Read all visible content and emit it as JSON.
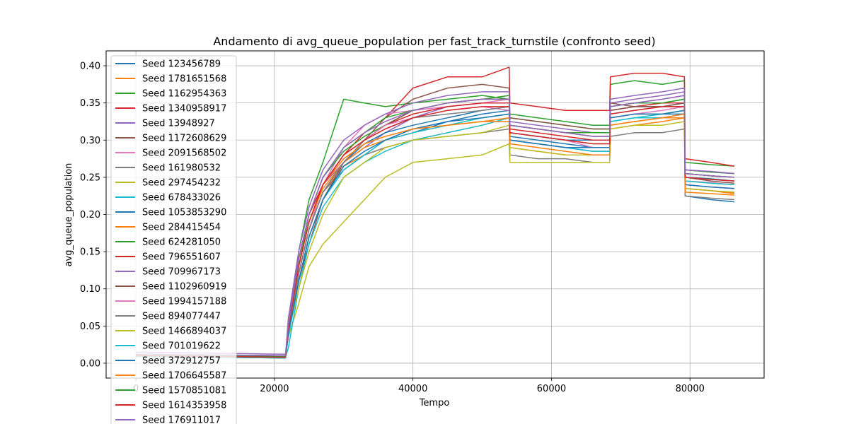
{
  "chart_data": {
    "type": "line",
    "title": "Andamento di avg_queue_population per fast_track_turnstile (confronto seed)",
    "xlabel": "Tempo",
    "ylabel": "avg_queue_population",
    "xlim": [
      -4300,
      90700
    ],
    "ylim": [
      -0.02,
      0.42
    ],
    "xticks": [
      0,
      20000,
      40000,
      60000,
      80000
    ],
    "xtick_labels": [
      "0",
      "20000",
      "40000",
      "60000",
      "80000"
    ],
    "yticks": [
      0.0,
      0.05,
      0.1,
      0.15,
      0.2,
      0.25,
      0.3,
      0.35,
      0.4
    ],
    "ytick_labels": [
      "0.00",
      "0.05",
      "0.10",
      "0.15",
      "0.20",
      "0.25",
      "0.30",
      "0.35",
      "0.40"
    ],
    "grid": true,
    "legend_position": "top-left",
    "x": [
      0,
      21600,
      22000,
      23500,
      25000,
      27000,
      30000,
      33000,
      36000,
      40000,
      45000,
      50000,
      53900,
      54000,
      58000,
      62000,
      66000,
      68400,
      68500,
      72000,
      76000,
      79200,
      79300,
      83000,
      86400
    ],
    "series": [
      {
        "name": "Seed 123456789",
        "color": "#1f77b4",
        "values": [
          0.01,
          0.008,
          0.04,
          0.11,
          0.17,
          0.22,
          0.26,
          0.28,
          0.3,
          0.31,
          0.325,
          0.335,
          0.34,
          0.305,
          0.3,
          0.295,
          0.29,
          0.29,
          0.33,
          0.335,
          0.335,
          0.335,
          0.225,
          0.22,
          0.217
        ]
      },
      {
        "name": "Seed 1781651568",
        "color": "#ff7f0e",
        "values": [
          0.009,
          0.007,
          0.04,
          0.12,
          0.18,
          0.23,
          0.265,
          0.28,
          0.29,
          0.3,
          0.31,
          0.32,
          0.33,
          0.3,
          0.295,
          0.29,
          0.285,
          0.285,
          0.32,
          0.325,
          0.33,
          0.33,
          0.235,
          0.232,
          0.229
        ]
      },
      {
        "name": "Seed 1162954363",
        "color": "#2ca02c",
        "values": [
          0.012,
          0.01,
          0.05,
          0.15,
          0.22,
          0.27,
          0.355,
          0.35,
          0.345,
          0.35,
          0.355,
          0.36,
          0.355,
          0.33,
          0.325,
          0.32,
          0.315,
          0.315,
          0.375,
          0.38,
          0.375,
          0.38,
          0.27,
          0.267,
          0.265
        ]
      },
      {
        "name": "Seed 1340958917",
        "color": "#d62728",
        "values": [
          0.01,
          0.008,
          0.045,
          0.13,
          0.19,
          0.24,
          0.28,
          0.31,
          0.33,
          0.37,
          0.385,
          0.385,
          0.398,
          0.35,
          0.345,
          0.34,
          0.34,
          0.34,
          0.385,
          0.39,
          0.39,
          0.385,
          0.275,
          0.27,
          0.265
        ]
      },
      {
        "name": "Seed 13948927",
        "color": "#9467bd",
        "values": [
          0.015,
          0.012,
          0.05,
          0.14,
          0.2,
          0.24,
          0.27,
          0.29,
          0.31,
          0.33,
          0.345,
          0.35,
          0.35,
          0.32,
          0.315,
          0.31,
          0.31,
          0.31,
          0.35,
          0.355,
          0.36,
          0.365,
          0.26,
          0.257,
          0.255
        ]
      },
      {
        "name": "Seed 1172608629",
        "color": "#8c564b",
        "values": [
          0.01,
          0.008,
          0.04,
          0.11,
          0.16,
          0.22,
          0.27,
          0.3,
          0.33,
          0.355,
          0.37,
          0.375,
          0.37,
          0.33,
          0.325,
          0.32,
          0.315,
          0.315,
          0.35,
          0.345,
          0.345,
          0.345,
          0.255,
          0.252,
          0.25
        ]
      },
      {
        "name": "Seed 2091568502",
        "color": "#e377c2",
        "values": [
          0.01,
          0.008,
          0.04,
          0.12,
          0.18,
          0.24,
          0.29,
          0.32,
          0.335,
          0.34,
          0.345,
          0.35,
          0.355,
          0.31,
          0.305,
          0.3,
          0.29,
          0.29,
          0.345,
          0.35,
          0.355,
          0.36,
          0.245,
          0.243,
          0.24
        ]
      },
      {
        "name": "Seed 161980532",
        "color": "#7f7f7f",
        "values": [
          0.01,
          0.008,
          0.04,
          0.12,
          0.18,
          0.23,
          0.26,
          0.28,
          0.29,
          0.3,
          0.305,
          0.31,
          0.315,
          0.28,
          0.275,
          0.275,
          0.27,
          0.27,
          0.305,
          0.31,
          0.31,
          0.315,
          0.225,
          0.222,
          0.22
        ]
      },
      {
        "name": "Seed 297454232",
        "color": "#bcbd22",
        "values": [
          0.01,
          0.009,
          0.035,
          0.08,
          0.13,
          0.16,
          0.19,
          0.22,
          0.25,
          0.27,
          0.275,
          0.28,
          0.295,
          0.27,
          0.27,
          0.27,
          0.27,
          0.27,
          0.33,
          0.335,
          0.335,
          0.34,
          0.245,
          0.242,
          0.24
        ]
      },
      {
        "name": "Seed 678433026",
        "color": "#17becf",
        "values": [
          0.01,
          0.008,
          0.02,
          0.1,
          0.16,
          0.21,
          0.25,
          0.27,
          0.285,
          0.3,
          0.31,
          0.32,
          0.33,
          0.3,
          0.295,
          0.29,
          0.285,
          0.285,
          0.325,
          0.33,
          0.33,
          0.335,
          0.24,
          0.237,
          0.235
        ]
      },
      {
        "name": "Seed 1053853290",
        "color": "#1f77b4",
        "values": [
          0.009,
          0.007,
          0.04,
          0.12,
          0.18,
          0.23,
          0.27,
          0.295,
          0.31,
          0.32,
          0.33,
          0.34,
          0.345,
          0.31,
          0.305,
          0.3,
          0.3,
          0.3,
          0.34,
          0.345,
          0.345,
          0.35,
          0.25,
          0.248,
          0.245
        ]
      },
      {
        "name": "Seed 284415454",
        "color": "#ff7f0e",
        "values": [
          0.009,
          0.008,
          0.045,
          0.13,
          0.19,
          0.235,
          0.27,
          0.29,
          0.3,
          0.31,
          0.32,
          0.325,
          0.325,
          0.29,
          0.285,
          0.28,
          0.28,
          0.28,
          0.315,
          0.32,
          0.325,
          0.33,
          0.235,
          0.232,
          0.228
        ]
      },
      {
        "name": "Seed 624281050",
        "color": "#2ca02c",
        "values": [
          0.011,
          0.009,
          0.05,
          0.13,
          0.2,
          0.25,
          0.285,
          0.305,
          0.32,
          0.34,
          0.35,
          0.355,
          0.36,
          0.335,
          0.33,
          0.325,
          0.32,
          0.32,
          0.345,
          0.35,
          0.35,
          0.355,
          0.26,
          0.257,
          0.255
        ]
      },
      {
        "name": "Seed 796551607",
        "color": "#d62728",
        "values": [
          0.01,
          0.008,
          0.05,
          0.14,
          0.2,
          0.24,
          0.28,
          0.3,
          0.32,
          0.335,
          0.345,
          0.35,
          0.35,
          0.315,
          0.31,
          0.305,
          0.3,
          0.3,
          0.34,
          0.345,
          0.35,
          0.35,
          0.255,
          0.252,
          0.25
        ]
      },
      {
        "name": "Seed 709967173",
        "color": "#9467bd",
        "values": [
          0.012,
          0.01,
          0.06,
          0.15,
          0.21,
          0.26,
          0.3,
          0.32,
          0.335,
          0.35,
          0.36,
          0.365,
          0.365,
          0.325,
          0.32,
          0.315,
          0.31,
          0.31,
          0.355,
          0.36,
          0.365,
          0.37,
          0.26,
          0.258,
          0.255
        ]
      },
      {
        "name": "Seed 1102960919",
        "color": "#8c564b",
        "values": [
          0.01,
          0.008,
          0.04,
          0.11,
          0.17,
          0.22,
          0.27,
          0.3,
          0.32,
          0.34,
          0.35,
          0.355,
          0.355,
          0.32,
          0.315,
          0.31,
          0.305,
          0.305,
          0.34,
          0.345,
          0.345,
          0.35,
          0.25,
          0.245,
          0.242
        ]
      },
      {
        "name": "Seed 1994157188",
        "color": "#e377c2",
        "values": [
          0.01,
          0.009,
          0.04,
          0.12,
          0.18,
          0.23,
          0.27,
          0.3,
          0.32,
          0.33,
          0.34,
          0.345,
          0.34,
          0.3,
          0.295,
          0.29,
          0.29,
          0.29,
          0.33,
          0.335,
          0.34,
          0.345,
          0.24,
          0.237,
          0.235
        ]
      },
      {
        "name": "Seed 894077447",
        "color": "#7f7f7f",
        "values": [
          0.012,
          0.01,
          0.04,
          0.12,
          0.18,
          0.23,
          0.27,
          0.3,
          0.315,
          0.33,
          0.335,
          0.34,
          0.345,
          0.31,
          0.305,
          0.3,
          0.295,
          0.295,
          0.335,
          0.34,
          0.345,
          0.345,
          0.25,
          0.247,
          0.245
        ]
      },
      {
        "name": "Seed 1466894037",
        "color": "#bcbd22",
        "values": [
          0.01,
          0.008,
          0.04,
          0.1,
          0.15,
          0.2,
          0.25,
          0.27,
          0.29,
          0.3,
          0.305,
          0.31,
          0.32,
          0.29,
          0.285,
          0.28,
          0.28,
          0.28,
          0.315,
          0.32,
          0.32,
          0.325,
          0.235,
          0.232,
          0.23
        ]
      },
      {
        "name": "Seed 701019622",
        "color": "#17becf",
        "values": [
          0.009,
          0.007,
          0.035,
          0.11,
          0.17,
          0.22,
          0.26,
          0.28,
          0.3,
          0.31,
          0.32,
          0.33,
          0.335,
          0.3,
          0.295,
          0.29,
          0.285,
          0.285,
          0.325,
          0.33,
          0.335,
          0.34,
          0.245,
          0.242,
          0.24
        ]
      },
      {
        "name": "Seed 372912757",
        "color": "#1f77b4",
        "values": [
          0.01,
          0.008,
          0.04,
          0.11,
          0.17,
          0.22,
          0.265,
          0.285,
          0.3,
          0.315,
          0.325,
          0.33,
          0.335,
          0.3,
          0.295,
          0.29,
          0.29,
          0.29,
          0.33,
          0.335,
          0.335,
          0.34,
          0.24,
          0.237,
          0.235
        ]
      },
      {
        "name": "Seed 1706645587",
        "color": "#ff7f0e",
        "values": [
          0.01,
          0.008,
          0.045,
          0.13,
          0.19,
          0.24,
          0.275,
          0.295,
          0.305,
          0.315,
          0.32,
          0.325,
          0.33,
          0.295,
          0.29,
          0.285,
          0.28,
          0.28,
          0.32,
          0.325,
          0.33,
          0.335,
          0.23,
          0.228,
          0.226
        ]
      },
      {
        "name": "Seed 1570851081",
        "color": "#2ca02c",
        "values": [
          0.011,
          0.009,
          0.05,
          0.14,
          0.2,
          0.25,
          0.29,
          0.31,
          0.33,
          0.34,
          0.35,
          0.355,
          0.355,
          0.32,
          0.315,
          0.31,
          0.31,
          0.31,
          0.345,
          0.35,
          0.35,
          0.355,
          0.255,
          0.252,
          0.25
        ]
      },
      {
        "name": "Seed 1614353958",
        "color": "#d62728",
        "values": [
          0.01,
          0.008,
          0.045,
          0.13,
          0.19,
          0.24,
          0.28,
          0.3,
          0.315,
          0.33,
          0.34,
          0.345,
          0.345,
          0.31,
          0.305,
          0.3,
          0.295,
          0.295,
          0.335,
          0.34,
          0.345,
          0.345,
          0.25,
          0.247,
          0.245
        ]
      },
      {
        "name": "Seed 176911017",
        "color": "#9467bd",
        "values": [
          0.012,
          0.01,
          0.05,
          0.14,
          0.2,
          0.25,
          0.29,
          0.31,
          0.325,
          0.34,
          0.35,
          0.355,
          0.355,
          0.32,
          0.315,
          0.31,
          0.305,
          0.305,
          0.345,
          0.35,
          0.355,
          0.36,
          0.255,
          0.252,
          0.25
        ]
      }
    ]
  }
}
